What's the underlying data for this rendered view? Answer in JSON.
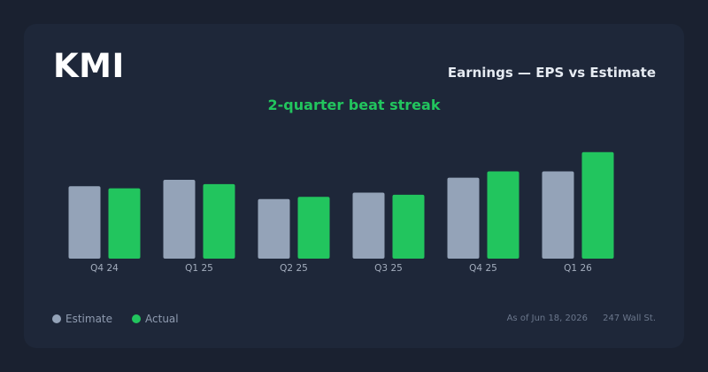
{
  "header": {
    "ticker": "KMI",
    "title": "Earnings — EPS vs Estimate",
    "streak": "2-quarter beat streak"
  },
  "colors": {
    "estimate": "#94a3b8",
    "actual": "#22c55e",
    "tick_label": "#a3adbd"
  },
  "chart_data": {
    "type": "bar",
    "categories": [
      "Q4 24",
      "Q1 25",
      "Q2 25",
      "Q3 25",
      "Q4 25",
      "Q1 26"
    ],
    "series": [
      {
        "name": "Estimate",
        "values": [
          0.34,
          0.37,
          0.28,
          0.31,
          0.38,
          0.41
        ]
      },
      {
        "name": "Actual",
        "values": [
          0.33,
          0.35,
          0.29,
          0.3,
          0.41,
          0.5
        ]
      }
    ],
    "ylim": [
      0,
      0.52
    ],
    "grid": false,
    "legend_position": "bottom-left"
  },
  "legend": {
    "estimate_label": "Estimate",
    "actual_label": "Actual"
  },
  "footer": {
    "as_of": "As of Jun 18, 2026",
    "source": "247 Wall St."
  }
}
